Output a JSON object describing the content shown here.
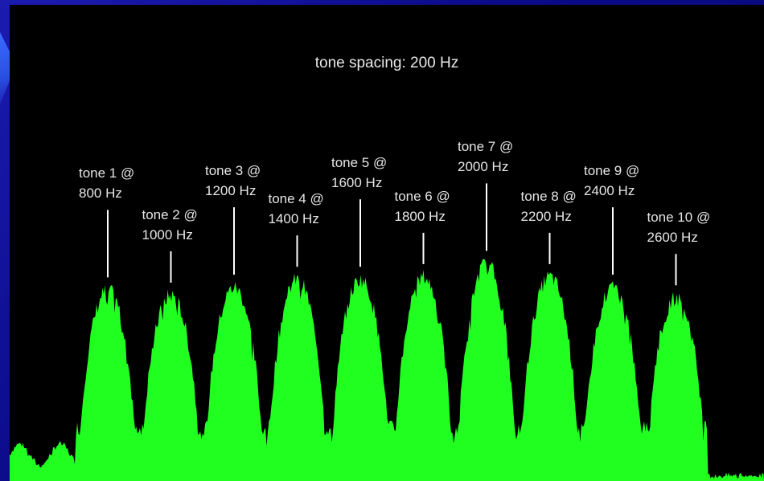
{
  "caption": "tone spacing: 200 Hz",
  "colors": {
    "spectrum": "#21ff21",
    "background": "#000000",
    "slide": "#0b0b8a",
    "label": "#e6e6e6"
  },
  "chart_data": {
    "type": "area",
    "title": "tone spacing: 200 Hz",
    "xlabel": "",
    "ylabel": "",
    "tones": [
      {
        "name": "tone 1 @",
        "freq": "800 Hz",
        "hz": 800,
        "peak": 0.72
      },
      {
        "name": "tone 2 @",
        "freq": "1000 Hz",
        "hz": 1000,
        "peak": 0.7
      },
      {
        "name": "tone 3 @",
        "freq": "1200 Hz",
        "hz": 1200,
        "peak": 0.73
      },
      {
        "name": "tone 4 @",
        "freq": "1400 Hz",
        "hz": 1400,
        "peak": 0.76
      },
      {
        "name": "tone 5 @",
        "freq": "1600 Hz",
        "hz": 1600,
        "peak": 0.76
      },
      {
        "name": "tone 6 @",
        "freq": "1800 Hz",
        "hz": 1800,
        "peak": 0.77
      },
      {
        "name": "tone 7 @",
        "freq": "2000 Hz",
        "hz": 2000,
        "peak": 0.82
      },
      {
        "name": "tone 8 @",
        "freq": "2200 Hz",
        "hz": 2200,
        "peak": 0.77
      },
      {
        "name": "tone 9 @",
        "freq": "2400 Hz",
        "hz": 2400,
        "peak": 0.73
      },
      {
        "name": "tone 10 @",
        "freq": "2600 Hz",
        "hz": 2600,
        "peak": 0.69
      }
    ]
  }
}
